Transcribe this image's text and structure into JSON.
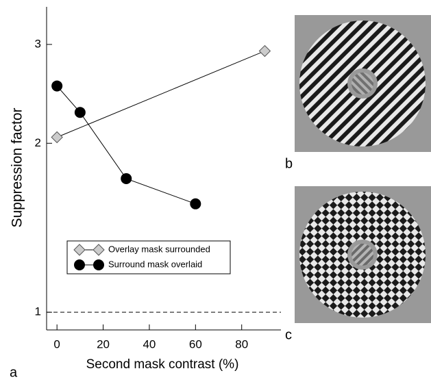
{
  "chart_data": {
    "type": "line",
    "y_label": "Suppression factor",
    "x_label": "Second mask contrast (%)",
    "xlim": [
      -4.5,
      97
    ],
    "xticks": [
      0,
      20,
      40,
      60,
      80
    ],
    "ylim": [
      0.93,
      3.5
    ],
    "yticks": [
      1,
      2,
      3
    ],
    "log_y": true,
    "reference_line": 1,
    "legend": "lower left",
    "series": [
      {
        "name": "Overlay mask surrounded",
        "color": "#cccccc",
        "marker": "diamond",
        "x": [
          0,
          90
        ],
        "values": [
          2.05,
          2.92
        ]
      },
      {
        "name": "Surround mask overlaid",
        "color": "#000000",
        "marker": "circle",
        "x": [
          0,
          10,
          30,
          60
        ],
        "values": [
          2.53,
          2.27,
          1.73,
          1.56
        ]
      }
    ]
  },
  "panel_labels": [
    "a",
    "b",
    "c"
  ]
}
